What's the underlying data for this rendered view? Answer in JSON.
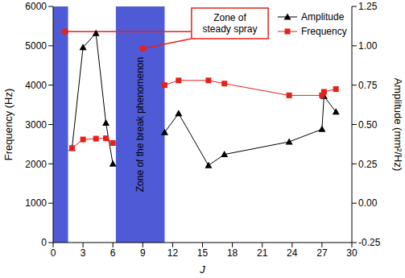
{
  "chart_data": {
    "type": "line",
    "x": [
      1.9,
      3,
      4.3,
      5.3,
      6,
      11.2,
      12.6,
      15.6,
      17.2,
      23.7,
      27,
      27.2,
      28.4
    ],
    "xlabel": "J",
    "xlim": [
      0,
      30
    ],
    "xticks": [
      0,
      3,
      6,
      9,
      12,
      15,
      18,
      21,
      24,
      27,
      30
    ],
    "ylabel": "Frequency (Hz)",
    "ylim": [
      0,
      6000
    ],
    "yticks": [
      0,
      1000,
      2000,
      3000,
      4000,
      5000,
      6000
    ],
    "y2label": "Amplitude (mm²/Hz)",
    "y2lim": [
      -0.25,
      1.25
    ],
    "y2ticks": [
      -0.25,
      {
        "value": 0,
        "label": "0.00"
      },
      0.25,
      {
        "value": 0.5,
        "label": "0.50"
      },
      0.75,
      {
        "value": 1,
        "label": "1.00"
      },
      1.25
    ],
    "series": [
      {
        "name": "Amplitude",
        "color": "#000000",
        "marker": "triangle",
        "axis": "y2",
        "values": [
          0.35,
          0.99,
          1.08,
          0.51,
          0.25,
          0.45,
          0.57,
          0.24,
          0.31,
          0.39,
          0.47,
          0.68,
          0.58
        ]
      },
      {
        "name": "Frequency",
        "color": "#e8201a",
        "marker": "square",
        "values": [
          2400,
          2620,
          2640,
          2650,
          2530,
          4000,
          4120,
          4120,
          4040,
          3740,
          3740,
          3830,
          3900
        ]
      }
    ],
    "legend": "upper right",
    "zones": [
      {
        "range": [
          0,
          1.5
        ],
        "color": "#4f5bd6"
      },
      {
        "range": [
          6.3,
          11.2
        ],
        "color": "#4f5bd6",
        "label": "Zone of the break phenomenon"
      }
    ],
    "annotations": [
      {
        "text": "Zone of steady spray"
      }
    ]
  }
}
